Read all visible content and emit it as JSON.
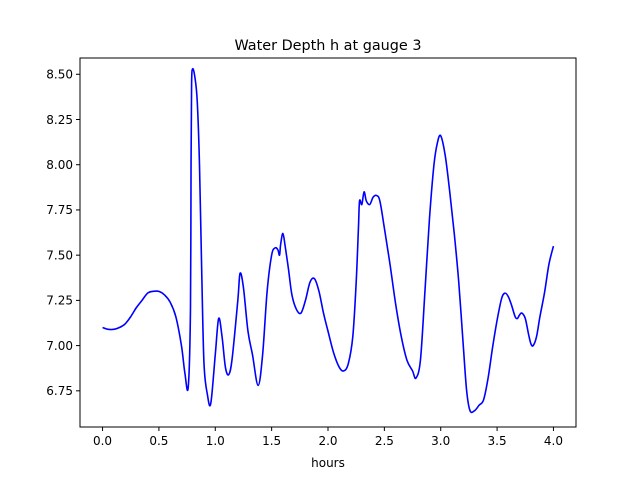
{
  "chart_data": {
    "type": "line",
    "title": "Water Depth h at gauge 3",
    "xlabel": "hours",
    "ylabel": "",
    "xlim": [
      -0.2,
      4.2
    ],
    "ylim": [
      6.55,
      8.59
    ],
    "xticks": [
      0.0,
      0.5,
      1.0,
      1.5,
      2.0,
      2.5,
      3.0,
      3.5,
      4.0
    ],
    "xtick_labels": [
      "0.0",
      "0.5",
      "1.0",
      "1.5",
      "2.0",
      "2.5",
      "3.0",
      "3.5",
      "4.0"
    ],
    "yticks": [
      6.75,
      7.0,
      7.25,
      7.5,
      7.75,
      8.0,
      8.25,
      8.5
    ],
    "ytick_labels": [
      "6.75",
      "7.00",
      "7.25",
      "7.50",
      "7.75",
      "8.00",
      "8.25",
      "8.50"
    ],
    "grid": false,
    "series": [
      {
        "color": "#0000ff",
        "x": [
          0.0,
          0.05,
          0.1,
          0.15,
          0.2,
          0.25,
          0.3,
          0.35,
          0.4,
          0.45,
          0.5,
          0.55,
          0.6,
          0.65,
          0.7,
          0.73,
          0.76,
          0.78,
          0.785,
          0.79,
          0.8,
          0.82,
          0.84,
          0.86,
          0.88,
          0.9,
          0.93,
          0.96,
          1.0,
          1.03,
          1.06,
          1.09,
          1.12,
          1.15,
          1.2,
          1.22,
          1.25,
          1.29,
          1.33,
          1.38,
          1.42,
          1.46,
          1.5,
          1.53,
          1.555,
          1.57,
          1.58,
          1.6,
          1.62,
          1.65,
          1.68,
          1.72,
          1.76,
          1.8,
          1.84,
          1.88,
          1.92,
          1.96,
          2.0,
          2.05,
          2.1,
          2.14,
          2.18,
          2.22,
          2.25,
          2.27,
          2.28,
          2.3,
          2.32,
          2.34,
          2.37,
          2.4,
          2.43,
          2.46,
          2.5,
          2.55,
          2.6,
          2.65,
          2.7,
          2.75,
          2.78,
          2.82,
          2.86,
          2.9,
          2.94,
          2.97,
          3.0,
          3.04,
          3.08,
          3.12,
          3.16,
          3.2,
          3.23,
          3.26,
          3.3,
          3.34,
          3.38,
          3.42,
          3.46,
          3.5,
          3.54,
          3.57,
          3.6,
          3.63,
          3.66,
          3.68,
          3.7,
          3.72,
          3.75,
          3.78,
          3.8,
          3.82,
          3.85,
          3.88,
          3.92,
          3.96,
          4.0
        ],
        "y": [
          7.1,
          7.09,
          7.09,
          7.1,
          7.12,
          7.16,
          7.21,
          7.25,
          7.29,
          7.3,
          7.3,
          7.28,
          7.24,
          7.16,
          7.0,
          6.85,
          6.77,
          7.2,
          8.0,
          8.45,
          8.53,
          8.48,
          8.35,
          8.0,
          7.4,
          6.9,
          6.73,
          6.68,
          6.95,
          7.15,
          7.05,
          6.88,
          6.84,
          6.93,
          7.25,
          7.4,
          7.32,
          7.08,
          6.95,
          6.78,
          6.95,
          7.3,
          7.5,
          7.54,
          7.53,
          7.5,
          7.56,
          7.62,
          7.55,
          7.42,
          7.28,
          7.2,
          7.18,
          7.25,
          7.35,
          7.37,
          7.3,
          7.18,
          7.08,
          6.96,
          6.88,
          6.86,
          6.9,
          7.05,
          7.35,
          7.65,
          7.8,
          7.78,
          7.85,
          7.8,
          7.78,
          7.82,
          7.83,
          7.8,
          7.65,
          7.45,
          7.23,
          7.05,
          6.92,
          6.86,
          6.82,
          6.92,
          7.3,
          7.7,
          8.0,
          8.12,
          8.16,
          8.05,
          7.85,
          7.62,
          7.35,
          7.0,
          6.75,
          6.64,
          6.64,
          6.67,
          6.7,
          6.82,
          6.99,
          7.14,
          7.26,
          7.29,
          7.27,
          7.22,
          7.16,
          7.15,
          7.17,
          7.18,
          7.15,
          7.06,
          7.01,
          7.0,
          7.05,
          7.16,
          7.29,
          7.45,
          7.55
        ]
      }
    ]
  }
}
